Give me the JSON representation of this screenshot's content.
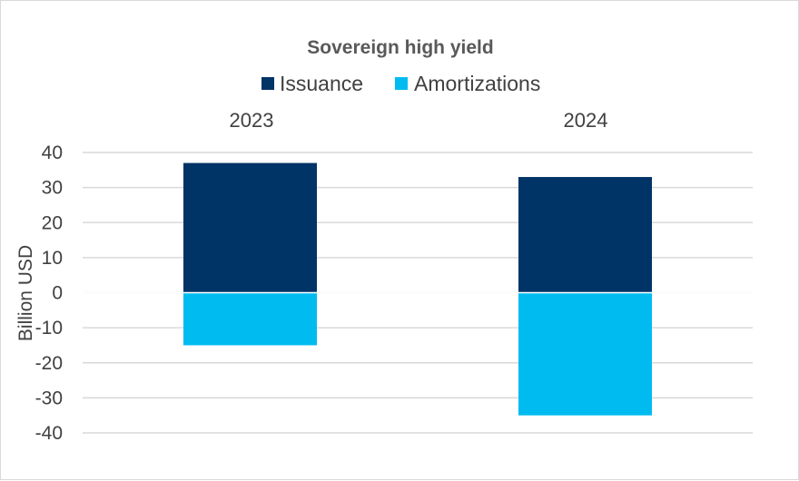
{
  "chart_data": {
    "type": "bar",
    "stacked": true,
    "title": "Sovereign high yield",
    "categories": [
      "2023",
      "2024"
    ],
    "series": [
      {
        "name": "Issuance",
        "color": "#003366",
        "values": [
          37,
          33
        ]
      },
      {
        "name": "Amortizations",
        "color": "#00BBF0",
        "values": [
          -15,
          -35
        ]
      }
    ],
    "ylabel": "Billion USD",
    "xlabel": "",
    "ylim": [
      -40,
      40
    ],
    "yticks": [
      40,
      30,
      20,
      10,
      0,
      -10,
      -20,
      -30,
      -40
    ],
    "category_labels_position": "top",
    "legend_position": "top",
    "grid": true
  }
}
